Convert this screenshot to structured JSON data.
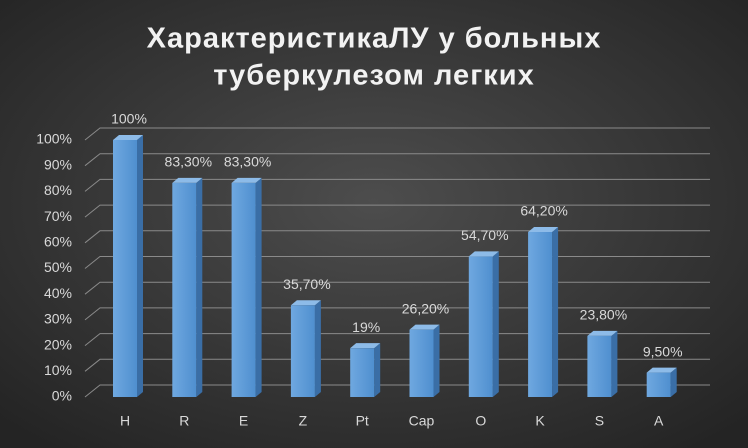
{
  "chart_data": {
    "type": "bar",
    "title": [
      "ХарактеристикаЛУ  у больных",
      "туберкулезом легких"
    ],
    "categories": [
      "H",
      "R",
      "E",
      "Z",
      "Pt",
      "Cap",
      "O",
      "K",
      "S",
      "A"
    ],
    "values": [
      100,
      83.3,
      83.3,
      35.7,
      19,
      26.2,
      54.7,
      64.2,
      23.8,
      9.5
    ],
    "value_labels": [
      "100%",
      "83,30%",
      "83,30%",
      "35,70%",
      "19%",
      "26,20%",
      "54,70%",
      "64,20%",
      "23,80%",
      "9,50%"
    ],
    "color": "#5b9bd5",
    "ylim": [
      0,
      100
    ],
    "yticks": [
      {
        "value": 0,
        "label": "0%"
      },
      {
        "value": 10,
        "label": "10%"
      },
      {
        "value": 20,
        "label": "20%"
      },
      {
        "value": 30,
        "label": "30%"
      },
      {
        "value": 40,
        "label": "40%"
      },
      {
        "value": 50,
        "label": "50%"
      },
      {
        "value": 60,
        "label": "60%"
      },
      {
        "value": 70,
        "label": "70%"
      },
      {
        "value": 80,
        "label": "80%"
      },
      {
        "value": 90,
        "label": "90%"
      },
      {
        "value": 100,
        "label": "100%"
      }
    ],
    "grid": true
  }
}
